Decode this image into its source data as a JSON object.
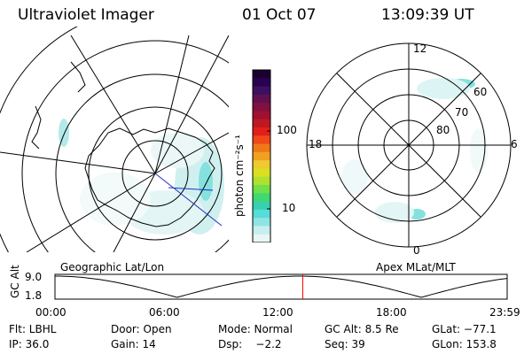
{
  "header": {
    "title": "Ultraviolet Imager",
    "date": "01 Oct 07",
    "time": "13:09:39 UT"
  },
  "left_map": {
    "label": "Geographic Lat/Lon"
  },
  "right_map": {
    "label": "Apex MLat/MLT",
    "mlt_labels": [
      "12",
      "18",
      "6",
      "0"
    ],
    "lat_labels": [
      "60",
      "70",
      "80"
    ]
  },
  "colorbar": {
    "unit_label": "photon cm⁻²s⁻¹",
    "tick_labels": [
      "100",
      "10"
    ],
    "colors": [
      "#1a0030",
      "#2a0050",
      "#3c1060",
      "#601050",
      "#801040",
      "#a01030",
      "#c01820",
      "#e02018",
      "#f04818",
      "#f07818",
      "#f0a020",
      "#f0c830",
      "#d8e020",
      "#b0e030",
      "#70e048",
      "#40d870",
      "#38d0b0",
      "#58dcd8",
      "#90e4e4",
      "#c8eeee",
      "#e8f6f6"
    ]
  },
  "timeline": {
    "y_label": "GC Alt",
    "y_ticks": [
      "9.0",
      "1.8"
    ],
    "x_ticks": [
      "00:00",
      "06:00",
      "12:00",
      "18:00",
      "23:59"
    ],
    "current_fraction": 0.548,
    "curve_color": "#000000",
    "marker_color": "#ff0000"
  },
  "info": {
    "flt": "Flt: LBHL",
    "door": "Door: Open",
    "mode": "Mode: Normal",
    "gc_alt": "GC Alt: 8.5 Re",
    "glat": "GLat: −77.1",
    "ip": "IP: 36.0",
    "gain": "Gain: 14",
    "dsp": "Dsp:    −2.2",
    "seq": "Seq: 39",
    "glon": "GLon: 153.8"
  }
}
